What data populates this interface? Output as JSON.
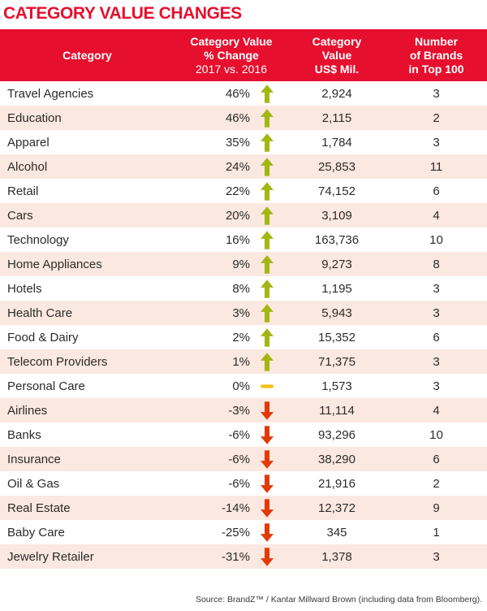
{
  "title": "CATEGORY VALUE CHANGES",
  "colors": {
    "red": "#e60f2e",
    "rowAlt": "#fbe8e0",
    "up": "#a4b613",
    "down": "#e13a07",
    "flat": "#f2c10f",
    "text": "#2b2b2b"
  },
  "table": {
    "headers": {
      "category": "Category",
      "pct": [
        "Category Value",
        "% Change",
        "2017 vs. 2016"
      ],
      "value": [
        "Category",
        "Value",
        "US$ Mil."
      ],
      "brands": [
        "Number",
        "of Brands",
        "in Top 100"
      ]
    },
    "rows": [
      {
        "category": "Travel Agencies",
        "pct": "46%",
        "trend": "up",
        "value": "2,924",
        "brands": "3"
      },
      {
        "category": "Education",
        "pct": "46%",
        "trend": "up",
        "value": "2,115",
        "brands": "2"
      },
      {
        "category": "Apparel",
        "pct": "35%",
        "trend": "up",
        "value": "1,784",
        "brands": "3"
      },
      {
        "category": "Alcohol",
        "pct": "24%",
        "trend": "up",
        "value": "25,853",
        "brands": "11"
      },
      {
        "category": "Retail",
        "pct": "22%",
        "trend": "up",
        "value": "74,152",
        "brands": "6"
      },
      {
        "category": "Cars",
        "pct": "20%",
        "trend": "up",
        "value": "3,109",
        "brands": "4"
      },
      {
        "category": "Technology",
        "pct": "16%",
        "trend": "up",
        "value": "163,736",
        "brands": "10"
      },
      {
        "category": "Home Appliances",
        "pct": "9%",
        "trend": "up",
        "value": "9,273",
        "brands": "8"
      },
      {
        "category": "Hotels",
        "pct": "8%",
        "trend": "up",
        "value": "1,195",
        "brands": "3"
      },
      {
        "category": "Health Care",
        "pct": "3%",
        "trend": "up",
        "value": "5,943",
        "brands": "3"
      },
      {
        "category": "Food & Dairy",
        "pct": "2%",
        "trend": "up",
        "value": "15,352",
        "brands": "6"
      },
      {
        "category": "Telecom Providers",
        "pct": "1%",
        "trend": "up",
        "value": "71,375",
        "brands": "3"
      },
      {
        "category": "Personal Care",
        "pct": "0%",
        "trend": "flat",
        "value": "1,573",
        "brands": "3"
      },
      {
        "category": "Airlines",
        "pct": "-3%",
        "trend": "down",
        "value": "11,114",
        "brands": "4"
      },
      {
        "category": "Banks",
        "pct": "-6%",
        "trend": "down",
        "value": "93,296",
        "brands": "10"
      },
      {
        "category": "Insurance",
        "pct": "-6%",
        "trend": "down",
        "value": "38,290",
        "brands": "6"
      },
      {
        "category": "Oil & Gas",
        "pct": "-6%",
        "trend": "down",
        "value": "21,916",
        "brands": "2"
      },
      {
        "category": "Real Estate",
        "pct": "-14%",
        "trend": "down",
        "value": "12,372",
        "brands": "9"
      },
      {
        "category": "Baby Care",
        "pct": "-25%",
        "trend": "down",
        "value": "345",
        "brands": "1"
      },
      {
        "category": "Jewelry Retailer",
        "pct": "-31%",
        "trend": "down",
        "value": "1,378",
        "brands": "3"
      }
    ]
  },
  "footer": {
    "source": "Source: BrandZ™ / Kantar Millward Brown (including data from Bloomberg)."
  },
  "chart_data": {
    "type": "table",
    "title": "Category Value Changes",
    "columns": [
      "Category",
      "Category Value % Change 2017 vs. 2016",
      "Category Value US$ Mil.",
      "Number of Brands in Top 100"
    ],
    "rows": [
      [
        "Travel Agencies",
        46,
        2924,
        3
      ],
      [
        "Education",
        46,
        2115,
        2
      ],
      [
        "Apparel",
        35,
        1784,
        3
      ],
      [
        "Alcohol",
        24,
        25853,
        11
      ],
      [
        "Retail",
        22,
        74152,
        6
      ],
      [
        "Cars",
        20,
        3109,
        4
      ],
      [
        "Technology",
        16,
        163736,
        10
      ],
      [
        "Home Appliances",
        9,
        9273,
        8
      ],
      [
        "Hotels",
        8,
        1195,
        3
      ],
      [
        "Health Care",
        3,
        5943,
        3
      ],
      [
        "Food & Dairy",
        2,
        15352,
        6
      ],
      [
        "Telecom Providers",
        1,
        71375,
        3
      ],
      [
        "Personal Care",
        0,
        1573,
        3
      ],
      [
        "Airlines",
        -3,
        11114,
        4
      ],
      [
        "Banks",
        -6,
        93296,
        10
      ],
      [
        "Insurance",
        -6,
        38290,
        6
      ],
      [
        "Oil & Gas",
        -6,
        21916,
        2
      ],
      [
        "Real Estate",
        -14,
        12372,
        9
      ],
      [
        "Baby Care",
        -25,
        345,
        1
      ],
      [
        "Jewelry Retailer",
        -31,
        1378,
        3
      ]
    ]
  }
}
